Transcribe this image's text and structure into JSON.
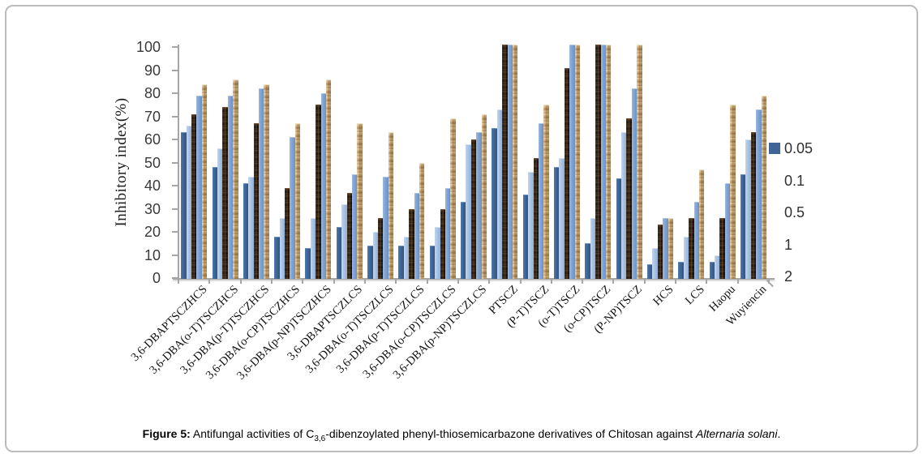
{
  "caption": {
    "figure_label": "Figure 5:",
    "body_pre": " Antifungal activities of C",
    "subscript": "3,6",
    "body_mid": "-dibenzoylated phenyl-thiosemicarbazone derivatives of Chitosan against ",
    "species_italic": "Alternaria solani",
    "suffix": "."
  },
  "chart_data": {
    "type": "bar",
    "title": "",
    "xlabel": "",
    "ylabel": "Inhibitory index(%)",
    "ylim": [
      0,
      100
    ],
    "ytick_step": 10,
    "grid": false,
    "legend_position": "right",
    "categories": [
      "3,6-DBAPTSCZHCS",
      "3,6-DBA(o-T)TSCZHCS",
      "3,6-DBA(p-T)TSCZHCS",
      "3,6-DBA(o-CP)TSCZHCS",
      "3,6-DBA(p-NP)TSCZHCS",
      "3,6-DBAPTSCZLCS",
      "3,6-DBA(o-T)TSCZLCS",
      "3,6-DBA(p-T)TSCZLCS",
      "3,6-DBA(o-CP)TSCZLCS",
      "3,6-DBA(p-NP)TSCZLCS",
      "PTSCZ",
      "(P-T)TSCZ",
      "(o-T)TSCZ",
      "(o-CP)TSCZ",
      "(P-NP)TSCZ",
      "HCS",
      "LCS",
      "Haopu",
      "Wuyiencin"
    ],
    "series": [
      {
        "name": "0.05",
        "color": "#3e6596",
        "swatch_visible": true,
        "texture": "solid",
        "values": [
          63,
          48,
          41,
          18,
          13,
          22,
          14,
          14,
          14,
          33,
          65,
          36,
          48,
          15,
          43,
          6,
          7,
          7,
          45
        ]
      },
      {
        "name": "0.1",
        "color": "#aac4e4",
        "swatch_visible": false,
        "texture": "solid",
        "values": [
          66,
          56,
          44,
          26,
          26,
          32,
          20,
          18,
          22,
          58,
          73,
          46,
          52,
          26,
          63,
          13,
          18,
          10,
          60
        ]
      },
      {
        "name": "0.5",
        "color": "#2f2013",
        "swatch_visible": false,
        "texture": "dark-wood",
        "values": [
          71,
          74,
          67,
          39,
          75,
          37,
          26,
          30,
          30,
          60,
          100,
          52,
          91,
          100,
          69,
          23,
          26,
          26,
          63
        ]
      },
      {
        "name": "1",
        "color": "#7fa3d3",
        "swatch_visible": false,
        "texture": "solid",
        "values": [
          79,
          79,
          82,
          61,
          80,
          45,
          44,
          37,
          39,
          63,
          100,
          67,
          100,
          100,
          82,
          26,
          33,
          41,
          73
        ]
      },
      {
        "name": "2",
        "color": "#c8a06e",
        "swatch_visible": false,
        "texture": "tan-wood",
        "values": [
          84,
          86,
          84,
          67,
          86,
          67,
          63,
          50,
          69,
          71,
          100,
          75,
          100,
          100,
          100,
          26,
          47,
          75,
          79
        ]
      }
    ]
  },
  "axis_style": {
    "line_color": "#a6a6a6",
    "tick_color": "#a6a6a6",
    "label_color": "#3a3a3a"
  }
}
